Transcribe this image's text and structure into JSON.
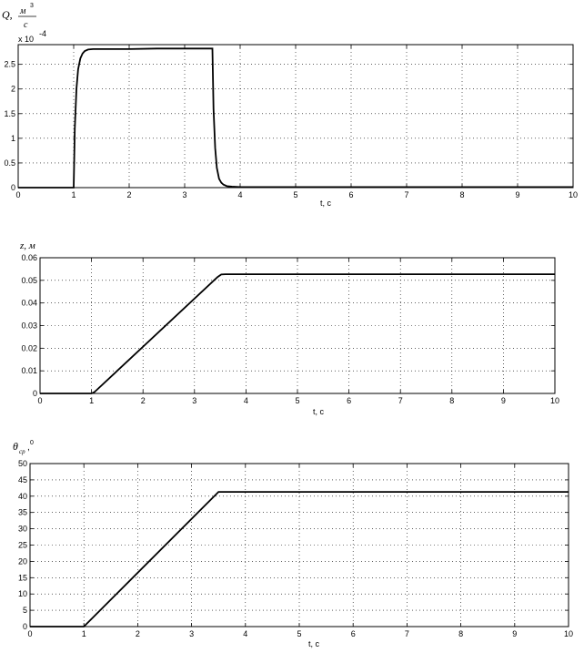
{
  "chart_data": [
    {
      "type": "line",
      "title": "",
      "ylabel": "Q, м³/с",
      "ylabel_parts": {
        "main": "Q,",
        "unit_num": "м",
        "unit_sup": "3",
        "unit_den": "с"
      },
      "y_multiplier": "x 10",
      "y_multiplier_exp": "-4",
      "xlabel": "t, c",
      "xlim": [
        0,
        10
      ],
      "ylim": [
        0,
        2.9
      ],
      "xticks": [
        0,
        1,
        2,
        3,
        4,
        5,
        6,
        7,
        8,
        9,
        10
      ],
      "yticks": [
        0,
        0.5,
        1,
        1.5,
        2,
        2.5
      ],
      "ytick_labels": [
        "0",
        "0.5",
        "1",
        "1.5",
        "2",
        "2.5"
      ],
      "grid": true,
      "series": [
        {
          "x": [
            0,
            1.0,
            1.02,
            1.05,
            1.08,
            1.12,
            1.16,
            1.2,
            1.26,
            1.35,
            1.5,
            2.0,
            2.5,
            3.0,
            3.48,
            3.5,
            3.52,
            3.55,
            3.58,
            3.62,
            3.66,
            3.7,
            3.76,
            3.85,
            4.0,
            5.0,
            10.0
          ],
          "y": [
            0,
            0,
            1.2,
            2.0,
            2.4,
            2.62,
            2.72,
            2.77,
            2.8,
            2.81,
            2.81,
            2.81,
            2.82,
            2.82,
            2.82,
            2.82,
            1.6,
            0.8,
            0.4,
            0.18,
            0.1,
            0.06,
            0.03,
            0.02,
            0.01,
            0.01,
            0.01
          ]
        }
      ]
    },
    {
      "type": "line",
      "title": "",
      "ylabel": "z, м",
      "xlabel": "t, c",
      "xlim": [
        0,
        10
      ],
      "ylim": [
        0,
        0.06
      ],
      "xticks": [
        0,
        1,
        2,
        3,
        4,
        5,
        6,
        7,
        8,
        9,
        10
      ],
      "yticks": [
        0,
        0.01,
        0.02,
        0.03,
        0.04,
        0.05,
        0.06
      ],
      "ytick_labels": [
        "0",
        "0.01",
        "0.02",
        "0.03",
        "0.04",
        "0.05",
        "0.06"
      ],
      "grid": true,
      "series": [
        {
          "x": [
            0,
            1.0,
            1.05,
            1.1,
            3.45,
            3.52,
            3.6,
            10.0
          ],
          "y": [
            0,
            0,
            0.0005,
            0.0015,
            0.0515,
            0.0526,
            0.0527,
            0.0527
          ]
        }
      ]
    },
    {
      "type": "line",
      "title": "",
      "ylabel": "θср, °",
      "ylabel_parts": {
        "main": "θ",
        "sub": "ср",
        "tail": ",",
        "sup": "0"
      },
      "xlabel": "t, c",
      "xlim": [
        0,
        10
      ],
      "ylim": [
        0,
        50
      ],
      "xticks": [
        0,
        1,
        2,
        3,
        4,
        5,
        6,
        7,
        8,
        9,
        10
      ],
      "yticks": [
        0,
        5,
        10,
        15,
        20,
        25,
        30,
        35,
        40,
        45,
        50
      ],
      "ytick_labels": [
        "0",
        "5",
        "10",
        "15",
        "20",
        "25",
        "30",
        "35",
        "40",
        "45",
        "50"
      ],
      "grid": true,
      "series": [
        {
          "x": [
            0,
            1.0,
            3.5,
            10.0
          ],
          "y": [
            0,
            0,
            41.3,
            41.3
          ]
        }
      ]
    }
  ]
}
